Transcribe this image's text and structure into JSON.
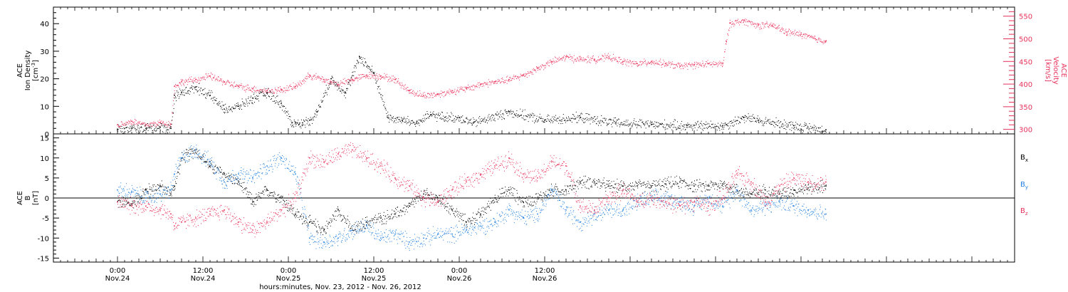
{
  "chart_data": [
    {
      "type": "scatter",
      "panel": "top",
      "ylabel": [
        "ACE",
        "Ion Density",
        "[cm^-3]"
      ],
      "ylabel_right": [
        "ACE",
        "Velocity",
        "[km/s]"
      ],
      "ylim": [
        0,
        46
      ],
      "ylim_right": [
        290,
        570
      ],
      "yticks": [
        0,
        10,
        20,
        30,
        40
      ],
      "yticks_right": [
        300,
        350,
        400,
        450,
        500,
        550
      ],
      "colors": {
        "density": "#000000",
        "velocity": "#e8305a"
      },
      "series": [
        {
          "axis": "left",
          "color": "#000000",
          "t": [
            0,
            2,
            4,
            6,
            7.5,
            8,
            9,
            11,
            13,
            15,
            17,
            19,
            21,
            23,
            24.5,
            25,
            25.5,
            26,
            27,
            28,
            30,
            32,
            34,
            36,
            38,
            40,
            42,
            44,
            46,
            48,
            50,
            55,
            60,
            65,
            70,
            75,
            80,
            85,
            88,
            90,
            95,
            99.5
          ],
          "values": [
            1.5,
            2,
            2,
            2.5,
            2,
            14,
            15,
            17,
            14,
            9,
            10,
            13,
            15,
            11,
            4,
            4,
            3.5,
            4,
            5,
            8,
            20,
            15,
            28,
            22,
            6,
            5,
            4,
            7,
            6,
            6,
            4,
            8,
            5,
            6,
            4,
            3.5,
            3,
            3,
            6,
            5,
            3,
            1.5
          ]
        },
        {
          "axis": "right",
          "color": "#e8305a",
          "t": [
            0,
            2,
            4,
            6,
            7.5,
            8,
            9,
            11,
            13,
            15,
            17,
            19,
            21,
            23,
            25,
            27,
            29,
            30,
            31,
            33,
            35,
            37,
            39,
            41,
            43,
            45,
            47,
            49,
            51,
            53,
            55,
            57,
            59,
            61,
            63,
            65,
            67,
            69,
            71,
            73,
            75,
            77,
            79,
            81,
            83,
            85,
            85.5,
            86,
            88,
            90,
            92,
            94,
            96,
            98,
            99.5
          ],
          "values": [
            310,
            318,
            310,
            315,
            312,
            395,
            405,
            410,
            418,
            405,
            395,
            390,
            385,
            388,
            395,
            420,
            410,
            405,
            400,
            410,
            420,
            418,
            410,
            385,
            375,
            378,
            385,
            390,
            400,
            405,
            410,
            420,
            435,
            450,
            460,
            455,
            455,
            460,
            450,
            445,
            450,
            445,
            440,
            443,
            445,
            445,
            495,
            535,
            540,
            530,
            530,
            515,
            510,
            500,
            495
          ]
        }
      ]
    },
    {
      "type": "scatter",
      "panel": "bottom",
      "ylabel": [
        "ACE",
        "B",
        "[nT]"
      ],
      "ylim": [
        -16,
        16
      ],
      "yticks": [
        -15,
        -10,
        -5,
        0,
        5,
        10,
        15
      ],
      "legend": [
        "Bx",
        "By",
        "Bz"
      ],
      "legend_position": "right",
      "colors": {
        "Bx": "#000000",
        "By": "#1f7fe0",
        "Bz": "#e8305a"
      },
      "series": [
        {
          "name": "Bx",
          "color": "#000000",
          "t": [
            0,
            2,
            4,
            6,
            7.5,
            8,
            9,
            11,
            13,
            15,
            17,
            19,
            21,
            23,
            25,
            27,
            29,
            31,
            33,
            35,
            37,
            39,
            41,
            43,
            45,
            47,
            49,
            51,
            53,
            55,
            57,
            59,
            61,
            63,
            65,
            67,
            69,
            71,
            73,
            75,
            77,
            79,
            81,
            83,
            85,
            87,
            89,
            91,
            93,
            95,
            97,
            99.5
          ],
          "values": [
            -1,
            -1.5,
            2,
            3,
            1,
            3,
            10,
            12,
            8,
            6,
            4,
            -1,
            2,
            0,
            -4,
            -6,
            -8,
            -3,
            -8,
            -6,
            -5,
            -4,
            -2,
            1,
            0,
            -3,
            -6,
            -4,
            0,
            2,
            -1,
            0,
            2,
            2,
            4,
            4,
            3,
            3,
            3,
            3,
            3.5,
            4,
            3,
            3,
            3.5,
            2,
            1,
            2,
            1,
            2,
            2.5,
            3
          ]
        },
        {
          "name": "By",
          "color": "#1f7fe0",
          "t": [
            0,
            2,
            4,
            6,
            7.5,
            8,
            9,
            11,
            13,
            15,
            17,
            19,
            21,
            23,
            25,
            27,
            29,
            31,
            33,
            35,
            37,
            39,
            41,
            43,
            45,
            47,
            49,
            51,
            53,
            55,
            57,
            59,
            61,
            63,
            65,
            67,
            69,
            71,
            73,
            75,
            77,
            79,
            81,
            83,
            85,
            87,
            89,
            91,
            93,
            95,
            97,
            99.5
          ],
          "values": [
            2,
            1.5,
            0,
            1,
            2,
            6,
            10,
            12,
            9,
            4,
            6,
            5,
            8,
            10,
            6,
            -10,
            -11,
            -10,
            -8,
            -7,
            -10,
            -9,
            -11,
            -10,
            -9,
            -9,
            -8,
            -7,
            -6,
            -3,
            -5,
            -4,
            2,
            -3,
            -6,
            -4,
            -3,
            -3,
            -1,
            0,
            0,
            -1,
            -2,
            0,
            -2,
            2,
            -3,
            -2,
            -1,
            -2,
            -3,
            -4
          ]
        },
        {
          "name": "Bz",
          "color": "#e8305a",
          "t": [
            0,
            2,
            4,
            6,
            7.5,
            8,
            9,
            11,
            13,
            15,
            17,
            19,
            21,
            23,
            25,
            27,
            29,
            31,
            33,
            35,
            37,
            39,
            41,
            43,
            45,
            47,
            49,
            51,
            53,
            55,
            57,
            59,
            61,
            63,
            65,
            67,
            69,
            71,
            73,
            75,
            77,
            79,
            81,
            83,
            85,
            87,
            89,
            91,
            93,
            95,
            97,
            99.5
          ],
          "values": [
            -1,
            -2,
            -2,
            -3,
            -4,
            -7,
            -6,
            -5,
            -4,
            -3,
            -6,
            -8,
            -6,
            -3,
            0,
            10,
            9,
            11,
            12,
            10,
            8,
            5,
            3,
            0,
            -1,
            2,
            4,
            6,
            8,
            10,
            6,
            5,
            9,
            8,
            -2,
            -3,
            0,
            2,
            -1,
            0,
            -1,
            -2,
            -1,
            -2,
            0,
            6,
            4,
            -1,
            3,
            5,
            4,
            4
          ]
        }
      ]
    }
  ],
  "x_axis": {
    "xlim_hours": [
      -9,
      126
    ],
    "ticks": [
      {
        "t": 0,
        "time": "0:00",
        "date": "Nov.24"
      },
      {
        "t": 12,
        "time": "12:00",
        "date": "Nov.24"
      },
      {
        "t": 24,
        "time": "0:00",
        "date": "Nov.25"
      },
      {
        "t": 36,
        "time": "12:00",
        "date": "Nov.25"
      },
      {
        "t": 48,
        "time": "0:00",
        "date": "Nov.26"
      },
      {
        "t": 60,
        "time": "12:00",
        "date": "Nov.26"
      }
    ],
    "xlabel": "hours:minutes, Nov. 23, 2012 - Nov. 26, 2012"
  }
}
